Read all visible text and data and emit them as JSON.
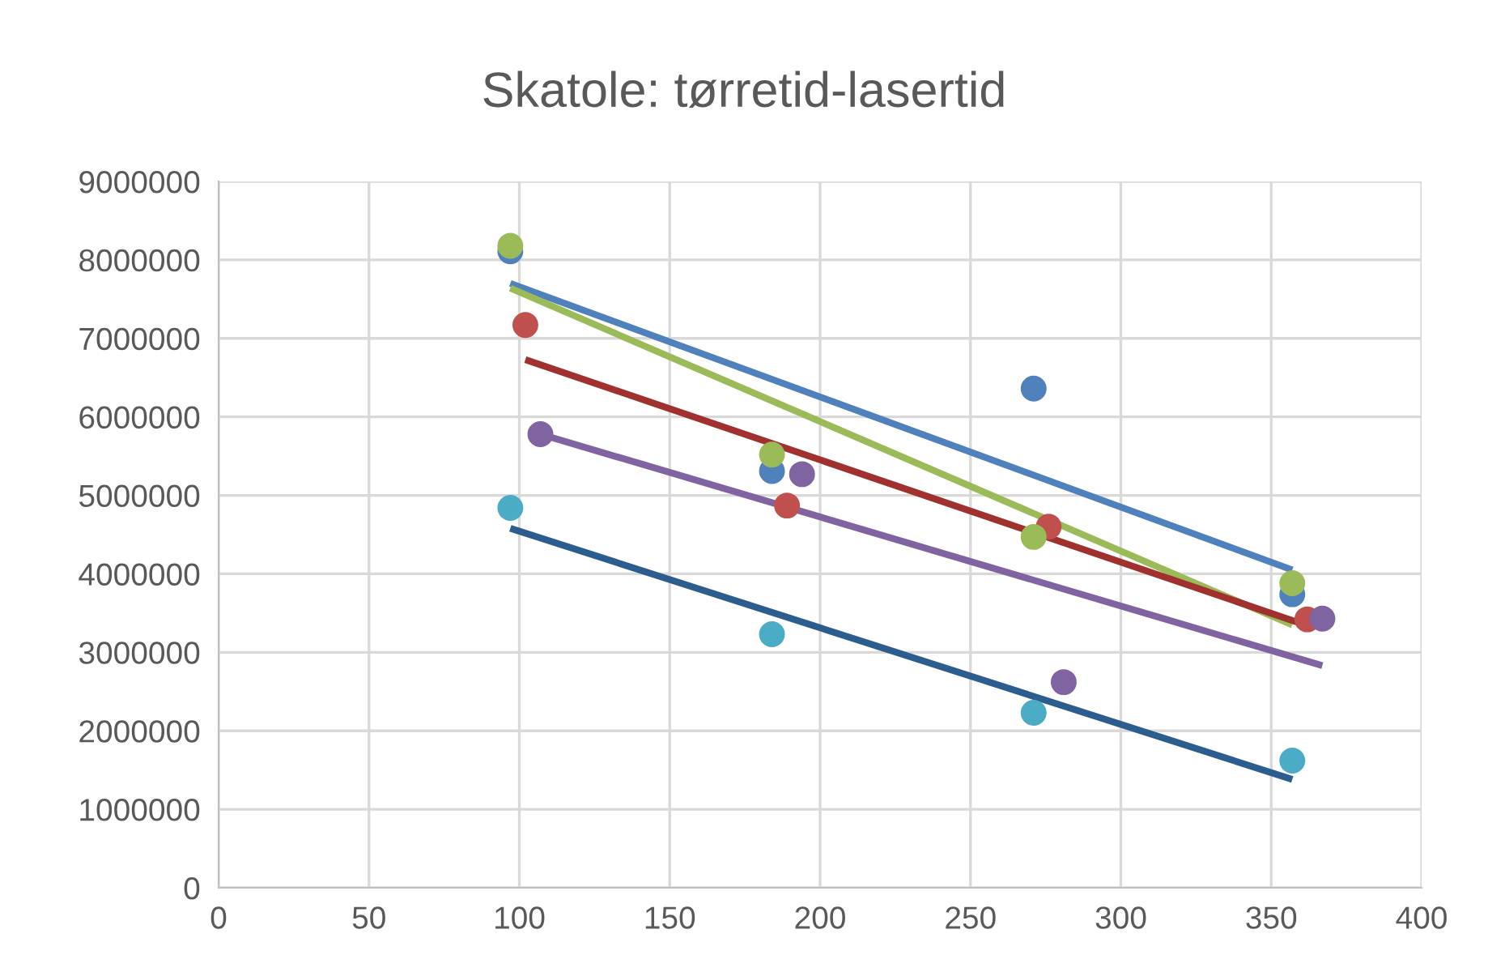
{
  "chart_data": {
    "type": "scatter",
    "title": "Skatole: tørretid-lasertid",
    "xlim": [
      0,
      400
    ],
    "xticks": [
      0,
      50,
      100,
      150,
      200,
      250,
      300,
      350,
      400
    ],
    "ylim": [
      0,
      9000000
    ],
    "yticks": [
      0,
      1000000,
      2000000,
      3000000,
      4000000,
      5000000,
      6000000,
      7000000,
      8000000,
      9000000
    ],
    "grid": true,
    "marker": "circle",
    "series": [
      {
        "color": "#4f81bd",
        "x": [
          97,
          184,
          271,
          357
        ],
        "values": [
          8110000,
          5310000,
          6360000,
          3740000
        ]
      },
      {
        "color": "#c0504d",
        "x": [
          102,
          189,
          276,
          362
        ],
        "values": [
          7170000,
          4870000,
          4600000,
          3420000
        ]
      },
      {
        "color": "#8064a2",
        "x": [
          107,
          194,
          281,
          367
        ],
        "values": [
          5780000,
          5270000,
          2620000,
          3430000
        ]
      },
      {
        "color": "#4bacc6",
        "x": [
          97,
          184,
          271,
          357
        ],
        "values": [
          4840000,
          3230000,
          2230000,
          1620000
        ]
      },
      {
        "color": "#9bbb59",
        "x": [
          97,
          184,
          271,
          357
        ],
        "values": [
          8180000,
          5520000,
          4470000,
          3880000
        ]
      },
      {
        "type": "line",
        "marker": "none",
        "color": "#4f81bd",
        "x": [
          97,
          357
        ],
        "values": [
          7700000,
          4050000
        ]
      },
      {
        "type": "line",
        "marker": "none",
        "color": "#9bbb59",
        "x": [
          97,
          357
        ],
        "values": [
          7640000,
          3350000
        ]
      },
      {
        "type": "line",
        "marker": "none",
        "color": "#a0312f",
        "x": [
          102,
          362
        ],
        "values": [
          6730000,
          3340000
        ]
      },
      {
        "type": "line",
        "marker": "none",
        "color": "#8064a2",
        "x": [
          107,
          367
        ],
        "values": [
          5780000,
          2830000
        ]
      },
      {
        "type": "line",
        "marker": "none",
        "color": "#2c5d8f",
        "x": [
          97,
          357
        ],
        "values": [
          4580000,
          1380000
        ]
      }
    ]
  }
}
